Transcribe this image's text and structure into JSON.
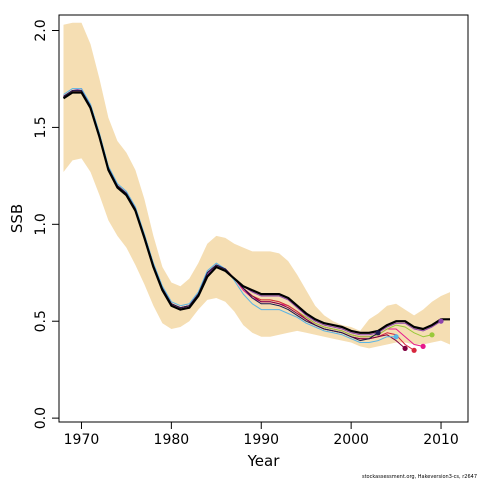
{
  "chart_data": {
    "type": "line",
    "xlabel": "Year",
    "ylabel": "SSB",
    "xlim": [
      1967.5,
      2013.0
    ],
    "ylim": [
      -0.02,
      2.08
    ],
    "xticks": [
      1970,
      1980,
      1990,
      2000,
      2010
    ],
    "yticks": [
      0.0,
      0.5,
      1.0,
      1.5,
      2.0
    ],
    "xtick_labels": [
      "1970",
      "1980",
      "1990",
      "2000",
      "2010"
    ],
    "ytick_labels": [
      "0.0",
      "0.5",
      "1.0",
      "1.5",
      "2.0"
    ],
    "grid": false,
    "band": {
      "color": "#f5deb3",
      "x": [
        1968,
        1969,
        1970,
        1971,
        1972,
        1973,
        1974,
        1975,
        1976,
        1977,
        1978,
        1979,
        1980,
        1981,
        1982,
        1983,
        1984,
        1985,
        1986,
        1987,
        1988,
        1989,
        1990,
        1991,
        1992,
        1993,
        1994,
        1995,
        1996,
        1997,
        1998,
        1999,
        2000,
        2001,
        2002,
        2003,
        2004,
        2005,
        2006,
        2007,
        2008,
        2009,
        2010,
        2011
      ],
      "upper": [
        2.03,
        2.04,
        2.04,
        1.93,
        1.75,
        1.55,
        1.43,
        1.37,
        1.28,
        1.13,
        0.94,
        0.78,
        0.7,
        0.68,
        0.72,
        0.8,
        0.9,
        0.94,
        0.93,
        0.9,
        0.88,
        0.86,
        0.86,
        0.86,
        0.85,
        0.81,
        0.74,
        0.66,
        0.58,
        0.53,
        0.5,
        0.48,
        0.47,
        0.45,
        0.51,
        0.54,
        0.58,
        0.59,
        0.56,
        0.53,
        0.56,
        0.6,
        0.63,
        0.65
      ],
      "lower": [
        1.27,
        1.33,
        1.34,
        1.27,
        1.15,
        1.02,
        0.94,
        0.88,
        0.79,
        0.69,
        0.58,
        0.49,
        0.46,
        0.47,
        0.5,
        0.56,
        0.61,
        0.62,
        0.6,
        0.55,
        0.48,
        0.44,
        0.42,
        0.42,
        0.43,
        0.44,
        0.45,
        0.44,
        0.43,
        0.42,
        0.41,
        0.4,
        0.39,
        0.37,
        0.36,
        0.37,
        0.38,
        0.39,
        0.39,
        0.38,
        0.38,
        0.39,
        0.4,
        0.38
      ]
    },
    "series": [
      {
        "color": "#000000",
        "width": 2.2,
        "x": [
          1968,
          1969,
          1970,
          1971,
          1972,
          1973,
          1974,
          1975,
          1976,
          1977,
          1978,
          1979,
          1980,
          1981,
          1982,
          1983,
          1984,
          1985,
          1986,
          1987,
          1988,
          1989,
          1990,
          1991,
          1992,
          1993,
          1994,
          1995,
          1996,
          1997,
          1998,
          1999,
          2000,
          2001,
          2002,
          2003,
          2004,
          2005,
          2006,
          2007,
          2008,
          2009,
          2010,
          2011
        ],
        "values": [
          1.65,
          1.68,
          1.68,
          1.6,
          1.45,
          1.28,
          1.19,
          1.15,
          1.07,
          0.93,
          0.78,
          0.66,
          0.58,
          0.56,
          0.57,
          0.63,
          0.73,
          0.78,
          0.76,
          0.72,
          0.68,
          0.66,
          0.64,
          0.64,
          0.64,
          0.62,
          0.58,
          0.54,
          0.51,
          0.49,
          0.48,
          0.47,
          0.45,
          0.44,
          0.44,
          0.45,
          0.48,
          0.5,
          0.5,
          0.47,
          0.46,
          0.48,
          0.51,
          0.51
        ]
      },
      {
        "color": "#e6198c",
        "width": 1.0,
        "x": [
          1968,
          1969,
          1970,
          1971,
          1972,
          1973,
          1974,
          1975,
          1976,
          1977,
          1978,
          1979,
          1980,
          1981,
          1982,
          1983,
          1984,
          1985,
          1986,
          1987,
          1988,
          1989,
          1990,
          1991,
          1992,
          1993,
          1994,
          1995,
          1996,
          1997,
          1998,
          1999,
          2000,
          2001,
          2002,
          2003,
          2004,
          2005,
          2006,
          2007,
          2008
        ],
        "values": [
          1.66,
          1.69,
          1.69,
          1.61,
          1.46,
          1.29,
          1.2,
          1.16,
          1.08,
          0.94,
          0.79,
          0.67,
          0.59,
          0.57,
          0.58,
          0.64,
          0.75,
          0.79,
          0.77,
          0.72,
          0.66,
          0.62,
          0.6,
          0.6,
          0.59,
          0.58,
          0.55,
          0.52,
          0.49,
          0.47,
          0.46,
          0.45,
          0.43,
          0.42,
          0.42,
          0.43,
          0.46,
          0.46,
          0.42,
          0.38,
          0.37
        ]
      },
      {
        "color": "#9ac93a",
        "width": 1.0,
        "x": [
          1968,
          1969,
          1970,
          1971,
          1972,
          1973,
          1974,
          1975,
          1976,
          1977,
          1978,
          1979,
          1980,
          1981,
          1982,
          1983,
          1984,
          1985,
          1986,
          1987,
          1988,
          1989,
          1990,
          1991,
          1992,
          1993,
          1994,
          1995,
          1996,
          1997,
          1998,
          1999,
          2000,
          2001,
          2002,
          2003,
          2004,
          2005,
          2006,
          2007,
          2008,
          2009
        ],
        "values": [
          1.65,
          1.68,
          1.68,
          1.6,
          1.45,
          1.28,
          1.19,
          1.15,
          1.07,
          0.93,
          0.78,
          0.66,
          0.58,
          0.56,
          0.57,
          0.63,
          0.74,
          0.78,
          0.76,
          0.72,
          0.67,
          0.63,
          0.61,
          0.61,
          0.6,
          0.58,
          0.55,
          0.52,
          0.49,
          0.47,
          0.46,
          0.45,
          0.43,
          0.42,
          0.42,
          0.43,
          0.46,
          0.48,
          0.47,
          0.44,
          0.42,
          0.43
        ]
      },
      {
        "color": "#8e44ad",
        "width": 1.0,
        "x": [
          1968,
          1969,
          1970,
          1971,
          1972,
          1973,
          1974,
          1975,
          1976,
          1977,
          1978,
          1979,
          1980,
          1981,
          1982,
          1983,
          1984,
          1985,
          1986,
          1987,
          1988,
          1989,
          1990,
          1991,
          1992,
          1993,
          1994,
          1995,
          1996,
          1997,
          1998,
          1999,
          2000,
          2001,
          2002,
          2003,
          2004,
          2005,
          2006,
          2007,
          2008,
          2009,
          2010
        ],
        "values": [
          1.66,
          1.69,
          1.7,
          1.61,
          1.46,
          1.29,
          1.2,
          1.16,
          1.08,
          0.94,
          0.79,
          0.67,
          0.59,
          0.57,
          0.58,
          0.64,
          0.74,
          0.79,
          0.77,
          0.72,
          0.68,
          0.65,
          0.63,
          0.63,
          0.63,
          0.61,
          0.57,
          0.53,
          0.5,
          0.48,
          0.47,
          0.46,
          0.44,
          0.43,
          0.43,
          0.44,
          0.47,
          0.49,
          0.49,
          0.46,
          0.45,
          0.47,
          0.5
        ]
      },
      {
        "color": "#d7263d",
        "width": 1.0,
        "x": [
          1968,
          1969,
          1970,
          1971,
          1972,
          1973,
          1974,
          1975,
          1976,
          1977,
          1978,
          1979,
          1980,
          1981,
          1982,
          1983,
          1984,
          1985,
          1986,
          1987,
          1988,
          1989,
          1990,
          1991,
          1992,
          1993,
          1994,
          1995,
          1996,
          1997,
          1998,
          1999,
          2000,
          2001,
          2002,
          2003,
          2004,
          2005,
          2006,
          2007
        ],
        "values": [
          1.66,
          1.69,
          1.69,
          1.61,
          1.46,
          1.29,
          1.2,
          1.16,
          1.08,
          0.94,
          0.79,
          0.67,
          0.59,
          0.57,
          0.58,
          0.64,
          0.75,
          0.79,
          0.77,
          0.72,
          0.67,
          0.63,
          0.61,
          0.61,
          0.6,
          0.58,
          0.55,
          0.51,
          0.48,
          0.46,
          0.45,
          0.44,
          0.42,
          0.41,
          0.41,
          0.42,
          0.44,
          0.43,
          0.38,
          0.35
        ]
      },
      {
        "color": "#800040",
        "width": 1.0,
        "x": [
          1968,
          1969,
          1970,
          1971,
          1972,
          1973,
          1974,
          1975,
          1976,
          1977,
          1978,
          1979,
          1980,
          1981,
          1982,
          1983,
          1984,
          1985,
          1986,
          1987,
          1988,
          1989,
          1990,
          1991,
          1992,
          1993,
          1994,
          1995,
          1996,
          1997,
          1998,
          1999,
          2000,
          2001,
          2002,
          2003,
          2004,
          2005,
          2006
        ],
        "values": [
          1.66,
          1.69,
          1.69,
          1.61,
          1.46,
          1.29,
          1.2,
          1.16,
          1.08,
          0.94,
          0.79,
          0.67,
          0.59,
          0.57,
          0.58,
          0.64,
          0.75,
          0.79,
          0.77,
          0.72,
          0.67,
          0.63,
          0.6,
          0.6,
          0.59,
          0.57,
          0.54,
          0.51,
          0.48,
          0.46,
          0.45,
          0.44,
          0.42,
          0.41,
          0.41,
          0.42,
          0.43,
          0.4,
          0.36
        ]
      },
      {
        "color": "#5ab4e5",
        "width": 1.0,
        "x": [
          1968,
          1969,
          1970,
          1971,
          1972,
          1973,
          1974,
          1975,
          1976,
          1977,
          1978,
          1979,
          1980,
          1981,
          1982,
          1983,
          1984,
          1985,
          1986,
          1987,
          1988,
          1989,
          1990,
          1991,
          1992,
          1993,
          1994,
          1995,
          1996,
          1997,
          1998,
          1999,
          2000,
          2001,
          2002,
          2003,
          2004,
          2005
        ],
        "values": [
          1.67,
          1.7,
          1.7,
          1.62,
          1.47,
          1.3,
          1.21,
          1.17,
          1.09,
          0.95,
          0.8,
          0.68,
          0.6,
          0.58,
          0.59,
          0.65,
          0.76,
          0.8,
          0.77,
          0.71,
          0.64,
          0.59,
          0.56,
          0.56,
          0.56,
          0.54,
          0.52,
          0.49,
          0.47,
          0.45,
          0.44,
          0.43,
          0.41,
          0.39,
          0.39,
          0.4,
          0.42,
          0.42
        ]
      },
      {
        "color": "#1b1b4d",
        "width": 1.0,
        "x": [
          1968,
          1969,
          1970,
          1971,
          1972,
          1973,
          1974,
          1975,
          1976,
          1977,
          1978,
          1979,
          1980,
          1981,
          1982,
          1983,
          1984,
          1985,
          1986,
          1987,
          1988,
          1989,
          1990,
          1991,
          1992,
          1993,
          1994,
          1995,
          1996,
          1997,
          1998,
          1999,
          2000,
          2001,
          2002,
          2003
        ],
        "values": [
          1.66,
          1.69,
          1.69,
          1.61,
          1.46,
          1.29,
          1.2,
          1.16,
          1.08,
          0.94,
          0.79,
          0.67,
          0.59,
          0.57,
          0.58,
          0.64,
          0.75,
          0.79,
          0.77,
          0.72,
          0.67,
          0.62,
          0.59,
          0.59,
          0.58,
          0.56,
          0.53,
          0.5,
          0.48,
          0.46,
          0.45,
          0.44,
          0.42,
          0.4,
          0.41,
          0.44
        ]
      }
    ],
    "footnote": "stockassessment.org, Hakeversion3-cs, r2647"
  }
}
